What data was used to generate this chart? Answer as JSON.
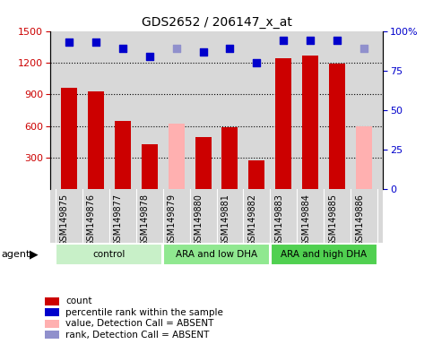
{
  "title": "GDS2652 / 206147_x_at",
  "samples": [
    "GSM149875",
    "GSM149876",
    "GSM149877",
    "GSM149878",
    "GSM149879",
    "GSM149880",
    "GSM149881",
    "GSM149882",
    "GSM149883",
    "GSM149884",
    "GSM149885",
    "GSM149886"
  ],
  "bar_values": [
    960,
    930,
    650,
    430,
    620,
    490,
    590,
    270,
    1240,
    1270,
    1190,
    600
  ],
  "bar_absent": [
    false,
    false,
    false,
    false,
    true,
    false,
    false,
    false,
    false,
    false,
    false,
    true
  ],
  "dot_values_pct": [
    93,
    93,
    89,
    84,
    89,
    87,
    89,
    80,
    94,
    94,
    94,
    89
  ],
  "dot_absent": [
    false,
    false,
    false,
    false,
    true,
    false,
    false,
    false,
    false,
    false,
    false,
    true
  ],
  "ylim_left": [
    0,
    1500
  ],
  "ylim_right": [
    0,
    100
  ],
  "yticks_left": [
    300,
    600,
    900,
    1200,
    1500
  ],
  "yticks_right": [
    0,
    25,
    50,
    75,
    100
  ],
  "groups": [
    {
      "label": "control",
      "start": 0,
      "end": 3,
      "color": "#c8f0c8"
    },
    {
      "label": "ARA and low DHA",
      "start": 4,
      "end": 7,
      "color": "#90e890"
    },
    {
      "label": "ARA and high DHA",
      "start": 8,
      "end": 11,
      "color": "#50d050"
    }
  ],
  "bar_color_present": "#cc0000",
  "bar_color_absent": "#ffb0b0",
  "dot_color_present": "#0000cc",
  "dot_color_absent": "#9090cc",
  "bg_color": "#d8d8d8",
  "ylabel_left_color": "#cc0000",
  "ylabel_right_color": "#0000cc",
  "legend": [
    {
      "label": "count",
      "color": "#cc0000"
    },
    {
      "label": "percentile rank within the sample",
      "color": "#0000cc"
    },
    {
      "label": "value, Detection Call = ABSENT",
      "color": "#ffb0b0"
    },
    {
      "label": "rank, Detection Call = ABSENT",
      "color": "#9090cc"
    }
  ],
  "agent_label": "agent",
  "bar_width": 0.6,
  "grid_yticks": [
    300,
    600,
    900,
    1200
  ]
}
